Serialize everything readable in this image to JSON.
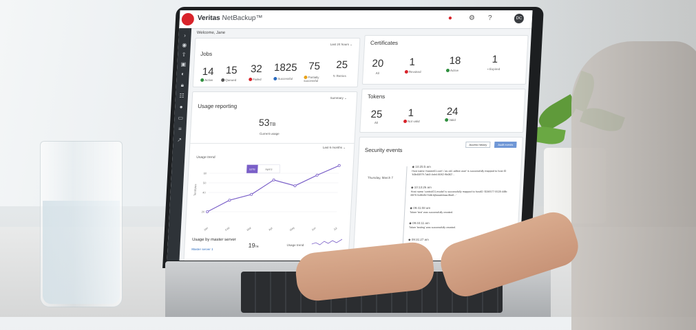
{
  "app": {
    "brand_bold": "Veritas",
    "brand_rest": " NetBackup™",
    "welcome": "Welcome, Jane",
    "avatar_initials": "DC"
  },
  "jobs": {
    "title": "Jobs",
    "range": "Last 24 hours ⌄",
    "stats": [
      {
        "value": "14",
        "label": "Active"
      },
      {
        "value": "15",
        "label": "Queued"
      },
      {
        "value": "32",
        "label": "Failed"
      },
      {
        "value": "1825",
        "label": "Successful"
      },
      {
        "value": "75",
        "label": "Partially successful"
      },
      {
        "value": "25",
        "label": "Retries"
      }
    ]
  },
  "certificates": {
    "title": "Certificates",
    "stats": [
      {
        "value": "20",
        "label": "All"
      },
      {
        "value": "1",
        "label": "Revoked"
      },
      {
        "value": "18",
        "label": "Active"
      },
      {
        "value": "1",
        "label": "Expired"
      }
    ]
  },
  "tokens": {
    "title": "Tokens",
    "stats": [
      {
        "value": "25",
        "label": "All"
      },
      {
        "value": "1",
        "label": "Not valid"
      },
      {
        "value": "24",
        "label": "Valid"
      }
    ]
  },
  "usage": {
    "title": "Usage reporting",
    "summary_label": "Summary ⌄",
    "current_value": "53",
    "current_unit": "TB",
    "current_label": "Current usage",
    "range": "Last 6 months ⌄",
    "trend_title": "Usage trend",
    "y_axis_label": "Terabytes",
    "tooltip_value": "53TB",
    "tooltip_date": "April 3",
    "by_master_title": "Usage by master server",
    "master_name": "Master server 1",
    "master_value": "19",
    "master_unit": "TB",
    "mini_trend_label": "Usage trend"
  },
  "chart_data": {
    "type": "line",
    "title": "Usage trend",
    "ylabel": "Terabytes",
    "x": [
      "Jan",
      "Feb",
      "Mar",
      "Apr",
      "May",
      "Jun",
      "Jul"
    ],
    "y_ticks": [
      "20",
      "40",
      "50",
      "60"
    ],
    "series": [
      {
        "values": [
          20,
          32,
          38,
          53,
          47,
          58,
          68
        ]
      }
    ],
    "ylim": [
      10,
      70
    ],
    "grid": true
  },
  "security": {
    "title": "Security events",
    "tab_access": "Access history",
    "tab_audit": "Audit events",
    "date": "Thursday, March 7",
    "events": [
      {
        "time": "10:25:5 am",
        "text": "Host name 'master01.com' / as old. adtive user' is successfully mapped to host ID 'b3b40879-7ab3-4eb4-8062-9b082'..."
      },
      {
        "time": "10:13:26 am",
        "text": "Host name 'controlO1.model' is successfully mapped to hostID 'ID36577-5528-44fb-8876-5c8fc6b74db-bjheaabmaa.8ke6...'"
      },
      {
        "time": "09:41:08 am",
        "text": "Token 'test' was successfully created."
      },
      {
        "time": "09:44:11 am",
        "text": "Token 'testing' was successfully created."
      },
      {
        "time": "09:31:27 am",
        "text": ""
      }
    ]
  },
  "colors": {
    "brand_red": "#d8232a",
    "chart_line": "#7a5fc8",
    "accent_blue": "#6f97d6"
  }
}
